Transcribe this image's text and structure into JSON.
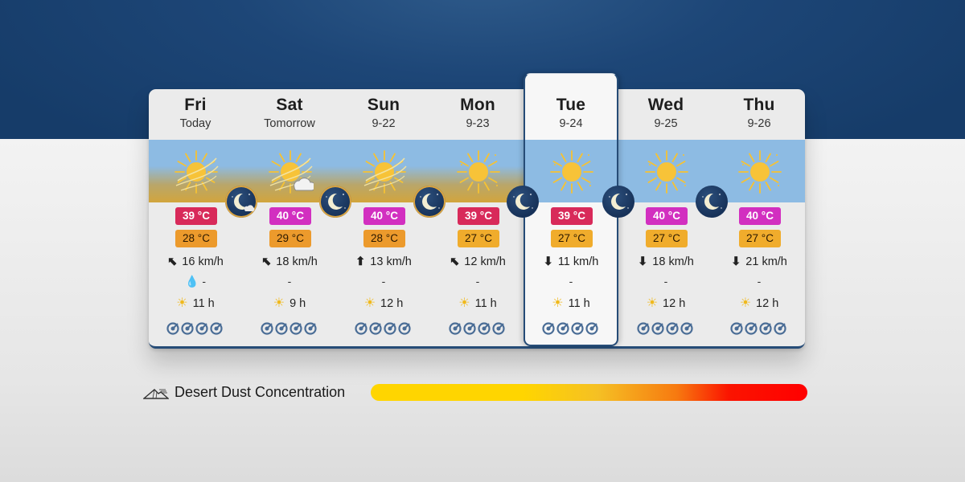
{
  "days": [
    {
      "day": "Fri",
      "date": "Today",
      "tmax": "39 °C",
      "tmax_color": "#d82a5a",
      "tmin": "28 °C",
      "tmin_color": "#ec9a2c",
      "wind_arrow": "⬉",
      "wind": "16 km/h",
      "rain_icon": "raindrop-icon",
      "rain": "-",
      "sun": "11 h",
      "dust": true,
      "cloud": false
    },
    {
      "day": "Sat",
      "date": "Tomorrow",
      "tmax": "40 °C",
      "tmax_color": "#d22fc0",
      "tmin": "29 °C",
      "tmin_color": "#ec9a2c",
      "wind_arrow": "⬉",
      "wind": "18 km/h",
      "rain": "-",
      "sun": "9 h",
      "dust": true,
      "cloud": true
    },
    {
      "day": "Sun",
      "date": "9-22",
      "tmax": "40 °C",
      "tmax_color": "#d22fc0",
      "tmin": "28 °C",
      "tmin_color": "#ec9a2c",
      "wind_arrow": "⬆",
      "wind": "13 km/h",
      "rain": "-",
      "sun": "12 h",
      "dust": true,
      "cloud": false
    },
    {
      "day": "Mon",
      "date": "9-23",
      "tmax": "39 °C",
      "tmax_color": "#d82a5a",
      "tmin": "27 °C",
      "tmin_color": "#f0ac2c",
      "wind_arrow": "⬉",
      "wind": "12 km/h",
      "rain": "-",
      "sun": "11 h",
      "dust": false,
      "cloud": false
    },
    {
      "day": "Tue",
      "date": "9-24",
      "tmax": "39 °C",
      "tmax_color": "#d82a5a",
      "tmin": "27 °C",
      "tmin_color": "#f0ac2c",
      "wind_arrow": "⬇",
      "wind": "11 km/h",
      "rain": "-",
      "sun": "11 h",
      "dust": false,
      "cloud": false
    },
    {
      "day": "Wed",
      "date": "9-25",
      "tmax": "40 °C",
      "tmax_color": "#d22fc0",
      "tmin": "27 °C",
      "tmin_color": "#f0ac2c",
      "wind_arrow": "⬇",
      "wind": "18 km/h",
      "rain": "-",
      "sun": "12 h",
      "dust": false,
      "cloud": false
    },
    {
      "day": "Thu",
      "date": "9-26",
      "tmax": "40 °C",
      "tmax_color": "#d22fc0",
      "tmin": "27 °C",
      "tmin_color": "#f0ac2c",
      "wind_arrow": "⬇",
      "wind": "21 km/h",
      "rain": "-",
      "sun": "12 h",
      "dust": false,
      "cloud": false
    }
  ],
  "selected_day": 4,
  "legend": {
    "label": "Desert Dust Concentration",
    "icon": "dust-mountain-icon"
  },
  "colors": {
    "header_blue": "#1d4677",
    "card_border": "#264c77",
    "sky": "#8dbbe3",
    "dust": "#d2a53c"
  }
}
